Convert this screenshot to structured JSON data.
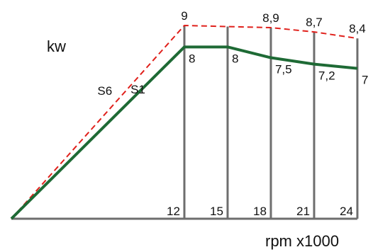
{
  "chart_data": {
    "type": "line",
    "unit_label": "kw",
    "xlabel": "rpm x1000",
    "x_ticks": [
      12,
      15,
      18,
      21,
      24
    ],
    "x_tick_labels": [
      "12",
      "15",
      "18",
      "21",
      "24"
    ],
    "ylim": [
      0,
      9.9
    ],
    "series": [
      {
        "name": "S6",
        "style": "dashed",
        "color": "#e0201b",
        "x": [
          0,
          12,
          18,
          21,
          24
        ],
        "y": [
          0,
          9,
          8.9,
          8.7,
          8.4
        ],
        "labels": [
          "",
          "9",
          "8,9",
          "8,7",
          "8,4"
        ]
      },
      {
        "name": "S1",
        "style": "solid",
        "color": "#1e6a35",
        "x": [
          0,
          12,
          15,
          18,
          21,
          24
        ],
        "y": [
          0,
          8,
          8,
          7.5,
          7.2,
          7
        ],
        "labels": [
          "",
          "8",
          "8",
          "7,5",
          "7,2",
          "7"
        ]
      }
    ],
    "colors": {
      "axis": "#6e6e6e",
      "text": "#111111"
    }
  }
}
